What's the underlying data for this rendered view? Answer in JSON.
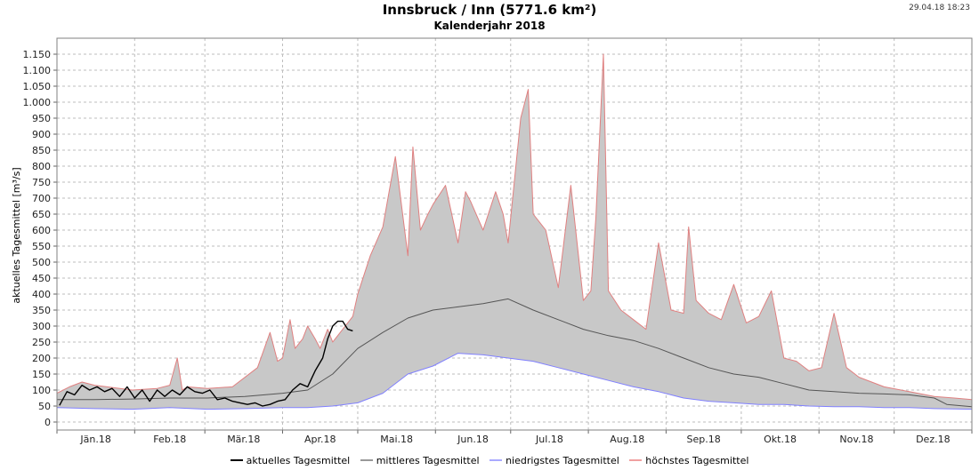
{
  "header": {
    "title": "Innsbruck / Inn (5771.6 km²)",
    "subtitle": "Kalenderjahr 2018",
    "timestamp": "29.04.18 18:23"
  },
  "colors": {
    "aktuell": "#000000",
    "mittel": "#555555",
    "niedrigst": "#8080ff",
    "hoechst": "#e08080",
    "band": "#c8c8c8"
  },
  "chart_data": {
    "type": "area",
    "title": "Innsbruck / Inn (5771.6 km²)",
    "subtitle": "Kalenderjahr 2018",
    "ylabel": "aktuelles Tagesmittel [m³/s]",
    "xlabel": "",
    "ylim": [
      0,
      1150
    ],
    "xlim": [
      0,
      365
    ],
    "yticks": [
      0,
      50,
      100,
      150,
      200,
      250,
      300,
      350,
      400,
      450,
      500,
      550,
      600,
      650,
      700,
      750,
      800,
      850,
      900,
      950,
      1000,
      1050,
      1100,
      1150
    ],
    "ytick_labels": [
      "0",
      "50",
      "100",
      "150",
      "200",
      "250",
      "300",
      "350",
      "400",
      "450",
      "500",
      "550",
      "600",
      "650",
      "700",
      "750",
      "800",
      "850",
      "900",
      "950",
      "1.000",
      "1.050",
      "1.100",
      "1.150"
    ],
    "month_labels": [
      "Jän.18",
      "Feb.18",
      "Mär.18",
      "Apr.18",
      "Mai.18",
      "Jun.18",
      "Jul.18",
      "Aug.18",
      "Sep.18",
      "Okt.18",
      "Nov.18",
      "Dez.18"
    ],
    "month_starts": [
      0,
      31,
      59,
      90,
      120,
      151,
      181,
      212,
      243,
      273,
      304,
      334,
      365
    ],
    "grid": true,
    "legend_position": "bottom",
    "series": [
      {
        "name": "aktuelles Tagesmittel",
        "x": [
          1,
          4,
          7,
          10,
          13,
          16,
          19,
          22,
          25,
          28,
          31,
          34,
          37,
          40,
          43,
          46,
          49,
          52,
          55,
          58,
          61,
          64,
          67,
          70,
          73,
          76,
          79,
          82,
          85,
          88,
          91,
          94,
          97,
          100,
          103,
          106,
          108,
          110,
          112,
          114,
          116,
          118
        ],
        "values": [
          52,
          95,
          85,
          115,
          100,
          110,
          95,
          105,
          80,
          110,
          75,
          100,
          65,
          100,
          80,
          100,
          85,
          110,
          95,
          90,
          100,
          70,
          75,
          65,
          60,
          55,
          60,
          50,
          55,
          65,
          70,
          100,
          120,
          110,
          160,
          200,
          260,
          300,
          315,
          315,
          290,
          285
        ]
      },
      {
        "name": "mittleres Tagesmittel",
        "x": [
          0,
          15,
          30,
          45,
          60,
          75,
          90,
          100,
          110,
          120,
          130,
          140,
          150,
          160,
          170,
          180,
          190,
          200,
          210,
          220,
          230,
          240,
          250,
          260,
          270,
          280,
          290,
          300,
          310,
          320,
          330,
          340,
          350,
          355,
          365
        ],
        "values": [
          70,
          70,
          72,
          75,
          75,
          80,
          90,
          100,
          150,
          230,
          280,
          325,
          350,
          360,
          370,
          385,
          350,
          320,
          290,
          270,
          255,
          230,
          200,
          170,
          150,
          140,
          120,
          100,
          95,
          90,
          88,
          85,
          75,
          55,
          48
        ]
      },
      {
        "name": "niedrigstes Tagesmittel",
        "x": [
          0,
          15,
          30,
          45,
          60,
          75,
          90,
          100,
          110,
          120,
          130,
          140,
          150,
          160,
          170,
          180,
          190,
          200,
          210,
          220,
          230,
          240,
          250,
          260,
          270,
          280,
          290,
          300,
          310,
          320,
          330,
          340,
          350,
          365
        ],
        "values": [
          45,
          42,
          40,
          45,
          40,
          42,
          45,
          45,
          50,
          60,
          90,
          150,
          175,
          215,
          210,
          200,
          190,
          170,
          150,
          130,
          110,
          95,
          75,
          65,
          60,
          55,
          55,
          50,
          48,
          48,
          45,
          45,
          42,
          40
        ]
      },
      {
        "name": "höchstes Tagesmittel",
        "x": [
          0,
          5,
          10,
          15,
          20,
          30,
          40,
          45,
          48,
          50,
          52,
          60,
          70,
          80,
          85,
          88,
          90,
          93,
          95,
          98,
          100,
          103,
          105,
          108,
          110,
          115,
          118,
          120,
          125,
          130,
          135,
          140,
          142,
          145,
          148,
          150,
          155,
          160,
          163,
          165,
          170,
          175,
          178,
          180,
          185,
          188,
          190,
          195,
          200,
          205,
          210,
          213,
          215,
          218,
          220,
          225,
          230,
          235,
          240,
          245,
          250,
          252,
          255,
          260,
          265,
          270,
          275,
          280,
          285,
          290,
          295,
          300,
          305,
          310,
          315,
          320,
          330,
          340,
          350,
          358,
          365
        ],
        "values": [
          90,
          110,
          125,
          115,
          110,
          100,
          105,
          115,
          200,
          100,
          110,
          105,
          110,
          170,
          280,
          190,
          200,
          320,
          230,
          260,
          300,
          260,
          230,
          290,
          250,
          300,
          330,
          400,
          520,
          610,
          830,
          520,
          860,
          600,
          650,
          680,
          740,
          560,
          720,
          690,
          600,
          720,
          650,
          560,
          950,
          1040,
          650,
          600,
          420,
          740,
          380,
          410,
          640,
          1150,
          410,
          350,
          320,
          290,
          560,
          350,
          340,
          610,
          380,
          340,
          320,
          430,
          310,
          330,
          410,
          200,
          190,
          160,
          170,
          340,
          170,
          140,
          110,
          95,
          80,
          75,
          70
        ]
      }
    ]
  },
  "legend": [
    {
      "label": "aktuelles Tagesmittel"
    },
    {
      "label": "mittleres Tagesmittel"
    },
    {
      "label": "niedrigstes Tagesmittel"
    },
    {
      "label": "höchstes Tagesmittel"
    }
  ]
}
